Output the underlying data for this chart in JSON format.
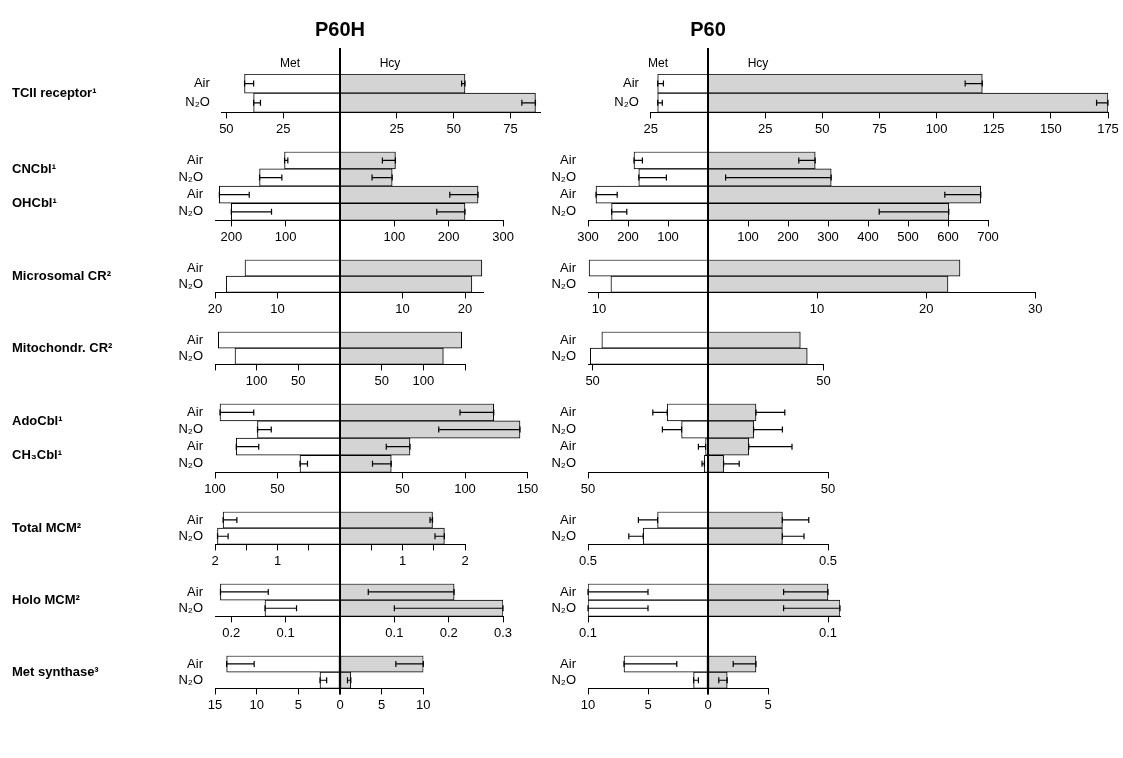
{
  "chart_data": [
    {
      "type": "bar",
      "orientation": "horizontal",
      "stacked": true,
      "title": "P60H",
      "categories": [
        "Air",
        "N₂O"
      ],
      "annotations": [
        "TCII receptor¹"
      ],
      "series": [
        {
          "name": "Met",
          "color": "#ffffff",
          "values": [
            -42,
            -38
          ],
          "errors": [
            [
              -42,
              -38
            ],
            [
              -38,
              -35
            ]
          ]
        },
        {
          "name": "Hcy",
          "color": "#d4d4d4",
          "values": [
            55,
            86
          ],
          "errors": [
            [
              53.5,
              55
            ],
            [
              80,
              86
            ]
          ]
        }
      ],
      "xlim": [
        -52,
        88
      ],
      "xticks": [
        {
          "value": -50,
          "label": "50"
        },
        {
          "value": -25,
          "label": "25"
        },
        25,
        50,
        75
      ]
    },
    {
      "type": "bar",
      "orientation": "horizontal",
      "stacked": true,
      "categories": [
        "Air",
        "N₂O",
        "Air",
        "N₂O"
      ],
      "annotations": [
        "CNCbl¹",
        "OHCbl¹"
      ],
      "series": [
        {
          "color": "#ffffff",
          "values": [
            -102,
            -148,
            -222,
            -200
          ],
          "errors": [
            [
              -102,
              -96
            ],
            [
              -148,
              -107
            ],
            [
              -222,
              -167
            ],
            [
              -200,
              -126
            ]
          ]
        },
        {
          "color": "#d4d4d4",
          "values": [
            102,
            96,
            254,
            230
          ],
          "errors": [
            [
              78,
              102
            ],
            [
              59,
              96
            ],
            [
              202,
              254
            ],
            [
              178,
              230
            ]
          ]
        }
      ],
      "xlim": [
        -230,
        300
      ],
      "xticks": [
        {
          "value": -200,
          "label": "200"
        },
        {
          "value": -100,
          "label": "100"
        },
        100,
        200,
        300
      ]
    },
    {
      "type": "bar",
      "orientation": "horizontal",
      "stacked": true,
      "categories": [
        "Air",
        "N₂O"
      ],
      "annotations": [
        "Microsomal CR²"
      ],
      "series": [
        {
          "color": "#ffffff",
          "values": [
            -15.2,
            -18.2
          ]
        },
        {
          "color": "#d4d4d4",
          "values": [
            22.7,
            21.1
          ]
        }
      ],
      "xlim": [
        -20,
        23
      ],
      "xticks": [
        {
          "value": -20,
          "label": "20"
        },
        {
          "value": -10,
          "label": "10"
        },
        10,
        20
      ]
    },
    {
      "type": "bar",
      "orientation": "horizontal",
      "stacked": true,
      "categories": [
        "Air",
        "N₂O"
      ],
      "annotations": [
        "Mitochondr. CR²"
      ],
      "series": [
        {
          "color": "#ffffff",
          "values": [
            -146,
            -126
          ]
        },
        {
          "color": "#d4d4d4",
          "values": [
            146,
            124
          ]
        }
      ],
      "xlim": [
        -150,
        150
      ],
      "xticks": [
        {
          "value": -150,
          "label": null
        },
        {
          "value": -100,
          "label": "100"
        },
        {
          "value": -50,
          "label": "50"
        },
        50,
        100,
        {
          "value": 150,
          "label": null
        }
      ]
    },
    {
      "type": "bar",
      "orientation": "horizontal",
      "stacked": true,
      "categories": [
        "Air",
        "N₂O",
        "Air",
        "N₂O"
      ],
      "annotations": [
        "AdoCbl¹",
        "CH₃Cbl¹"
      ],
      "series": [
        {
          "color": "#ffffff",
          "values": [
            -96,
            -66,
            -83,
            -32
          ],
          "errors": [
            [
              -96,
              -69
            ],
            [
              -66,
              -55
            ],
            [
              -83,
              -65
            ],
            [
              -32,
              -26
            ]
          ]
        },
        {
          "color": "#d4d4d4",
          "values": [
            123,
            144,
            56,
            41
          ],
          "errors": [
            [
              96,
              123
            ],
            [
              79,
              144
            ],
            [
              37,
              56
            ],
            [
              26,
              41
            ]
          ]
        }
      ],
      "xlim": [
        -100,
        150
      ],
      "xticks": [
        {
          "value": -100,
          "label": "100"
        },
        {
          "value": -50,
          "label": "50"
        },
        50,
        100,
        150
      ]
    },
    {
      "type": "bar",
      "orientation": "horizontal",
      "stacked": true,
      "categories": [
        "Air",
        "N₂O"
      ],
      "annotations": [
        "Total MCM²"
      ],
      "series": [
        {
          "color": "#ffffff",
          "values": [
            -1.87,
            -1.96
          ],
          "errors": [
            [
              -1.87,
              -1.65
            ],
            [
              -1.96,
              -1.79
            ]
          ]
        },
        {
          "color": "#d4d4d4",
          "values": [
            1.48,
            1.67
          ],
          "errors": [
            [
              1.44,
              1.48
            ],
            [
              1.52,
              1.67
            ]
          ]
        }
      ],
      "xlim": [
        -2,
        2
      ],
      "xticks": [
        {
          "value": -2,
          "label": "2"
        },
        {
          "value": -1.5,
          "label": null
        },
        {
          "value": -1,
          "label": "1"
        },
        {
          "value": -0.5,
          "label": null
        },
        {
          "value": 0.5,
          "label": null
        },
        1,
        {
          "value": 1.5,
          "label": null
        },
        2
      ]
    },
    {
      "type": "bar",
      "orientation": "horizontal",
      "stacked": true,
      "categories": [
        "Air",
        "N₂O"
      ],
      "annotations": [
        "Holo MCM²"
      ],
      "series": [
        {
          "color": "#ffffff",
          "values": [
            -0.22,
            -0.138
          ],
          "errors": [
            [
              -0.22,
              -0.132
            ],
            [
              -0.138,
              -0.08
            ]
          ]
        },
        {
          "color": "#d4d4d4",
          "values": [
            0.21,
            0.3
          ],
          "errors": [
            [
              0.052,
              0.21
            ],
            [
              0.1,
              0.3
            ]
          ]
        }
      ],
      "xlim": [
        -0.23,
        0.3
      ],
      "xticks": [
        {
          "value": -0.2,
          "label": "0.2"
        },
        {
          "value": -0.1,
          "label": "0.1"
        },
        0.1,
        0.2,
        0.3
      ]
    },
    {
      "type": "bar",
      "orientation": "horizontal",
      "stacked": true,
      "categories": [
        "Air",
        "N₂O"
      ],
      "annotations": [
        "Met synthase³"
      ],
      "series": [
        {
          "color": "#ffffff",
          "values": [
            -13.6,
            -2.4
          ],
          "errors": [
            [
              -13.6,
              -10.3
            ],
            [
              -2.4,
              -1.6
            ]
          ]
        },
        {
          "color": "#d4d4d4",
          "values": [
            10,
            1.3
          ],
          "errors": [
            [
              6.7,
              10
            ],
            [
              0.9,
              1.3
            ]
          ]
        }
      ],
      "xlim": [
        -15,
        10
      ],
      "xticks": [
        {
          "value": -15,
          "label": "15"
        },
        {
          "value": -10,
          "label": "10"
        },
        {
          "value": -5,
          "label": "5"
        },
        0,
        5,
        10
      ]
    },
    {
      "type": "bar",
      "orientation": "horizontal",
      "stacked": true,
      "title": "P60",
      "categories": [
        "Air",
        "N₂O"
      ],
      "series": [
        {
          "name": "Met",
          "color": "#ffffff",
          "values": [
            -22,
            -22
          ],
          "errors": [
            [
              -22,
              -19.5
            ],
            [
              -22,
              -20
            ]
          ]
        },
        {
          "name": "Hcy",
          "color": "#d4d4d4",
          "values": [
            120,
            175
          ],
          "errors": [
            [
              112.5,
              120
            ],
            [
              170,
              175
            ]
          ]
        }
      ],
      "xlim": [
        -25,
        175
      ],
      "xticks": [
        {
          "value": -25,
          "label": "25"
        },
        25,
        50,
        75,
        100,
        125,
        150,
        175
      ]
    },
    {
      "type": "bar",
      "orientation": "horizontal",
      "stacked": true,
      "categories": [
        "Air",
        "N₂O",
        "Air",
        "N₂O"
      ],
      "series": [
        {
          "color": "#ffffff",
          "values": [
            -185,
            -173,
            -280,
            -241
          ],
          "errors": [
            [
              -185,
              -164
            ],
            [
              -173,
              -104
            ],
            [
              -280,
              -227
            ],
            [
              -241,
              -203
            ]
          ]
        },
        {
          "color": "#d4d4d4",
          "values": [
            268,
            308,
            682,
            602
          ],
          "errors": [
            [
              227,
              268
            ],
            [
              44,
              308
            ],
            [
              592,
              682
            ],
            [
              428,
              602
            ]
          ]
        }
      ],
      "xlim": [
        -300,
        700
      ],
      "xticks": [
        {
          "value": -300,
          "label": "300"
        },
        {
          "value": -200,
          "label": "200"
        },
        {
          "value": -100,
          "label": "100"
        },
        100,
        200,
        300,
        400,
        500,
        600,
        700
      ]
    },
    {
      "type": "bar",
      "orientation": "horizontal",
      "stacked": true,
      "categories": [
        "Air",
        "N₂O"
      ],
      "series": [
        {
          "color": "#ffffff",
          "values": [
            -10.9,
            -8.9
          ]
        },
        {
          "color": "#d4d4d4",
          "values": [
            23.1,
            22
          ]
        }
      ],
      "xlim": [
        -11,
        30
      ],
      "xticks": [
        {
          "value": -10,
          "label": "10"
        },
        10,
        20,
        30
      ]
    },
    {
      "type": "bar",
      "orientation": "horizontal",
      "stacked": true,
      "categories": [
        "Air",
        "N₂O"
      ],
      "series": [
        {
          "color": "#ffffff",
          "values": [
            -46,
            -51
          ]
        },
        {
          "color": "#d4d4d4",
          "values": [
            40,
            43
          ]
        }
      ],
      "xlim": [
        -52,
        50
      ],
      "xticks": [
        {
          "value": -50,
          "label": "50"
        },
        50
      ]
    },
    {
      "type": "bar",
      "orientation": "horizontal",
      "stacked": true,
      "categories": [
        "Air",
        "N₂O",
        "Air",
        "N₂O"
      ],
      "series": [
        {
          "color": "#ffffff",
          "values": [
            -17,
            -11,
            -1,
            -1.5
          ],
          "errors": [
            [
              -23,
              -17
            ],
            [
              -19,
              -11
            ],
            [
              -4,
              -1
            ],
            [
              -2.5,
              -1.5
            ]
          ]
        },
        {
          "color": "#d4d4d4",
          "values": [
            20,
            19,
            17,
            6.5
          ],
          "errors": [
            [
              20,
              32
            ],
            [
              19,
              31
            ],
            [
              17,
              35
            ],
            [
              6.5,
              13
            ]
          ]
        }
      ],
      "xlim": [
        -50,
        50
      ],
      "xticks": [
        {
          "value": -50,
          "label": "50"
        },
        50
      ]
    },
    {
      "type": "bar",
      "orientation": "horizontal",
      "stacked": true,
      "categories": [
        "Air",
        "N₂O"
      ],
      "series": [
        {
          "color": "#ffffff",
          "values": [
            -0.21,
            -0.27
          ],
          "errors": [
            [
              -0.29,
              -0.21
            ],
            [
              -0.33,
              -0.27
            ]
          ]
        },
        {
          "color": "#d4d4d4",
          "values": [
            0.31,
            0.31
          ],
          "errors": [
            [
              0.31,
              0.42
            ],
            [
              0.31,
              0.4
            ]
          ]
        }
      ],
      "xlim": [
        -0.5,
        0.5
      ],
      "xticks": [
        {
          "value": -0.5,
          "label": "0.5"
        },
        0.5
      ]
    },
    {
      "type": "bar",
      "orientation": "horizontal",
      "stacked": true,
      "categories": [
        "Air",
        "N₂O"
      ],
      "series": [
        {
          "color": "#ffffff",
          "values": [
            -0.1,
            -0.1
          ],
          "errors": [
            [
              -0.1,
              -0.05
            ],
            [
              -0.1,
              -0.05
            ]
          ]
        },
        {
          "color": "#d4d4d4",
          "values": [
            0.1,
            0.11
          ],
          "errors": [
            [
              0.063,
              0.1
            ],
            [
              0.063,
              0.11
            ]
          ]
        }
      ],
      "xlim": [
        -0.1,
        0.11
      ],
      "xticks": [
        {
          "value": -0.1,
          "label": "0.1"
        },
        0.1
      ]
    },
    {
      "type": "bar",
      "orientation": "horizontal",
      "stacked": true,
      "categories": [
        "Air",
        "N₂O"
      ],
      "series": [
        {
          "color": "#ffffff",
          "values": [
            -7,
            -1.2
          ],
          "errors": [
            [
              -7,
              -2.6
            ],
            [
              -1.2,
              -0.8
            ]
          ]
        },
        {
          "color": "#d4d4d4",
          "values": [
            4,
            1.6
          ],
          "errors": [
            [
              2.1,
              4
            ],
            [
              0.9,
              1.6
            ]
          ]
        }
      ],
      "xlim": [
        -10,
        5
      ],
      "xticks": [
        {
          "value": -10,
          "label": "10"
        },
        {
          "value": -5,
          "label": "5"
        },
        0,
        5
      ]
    }
  ]
}
